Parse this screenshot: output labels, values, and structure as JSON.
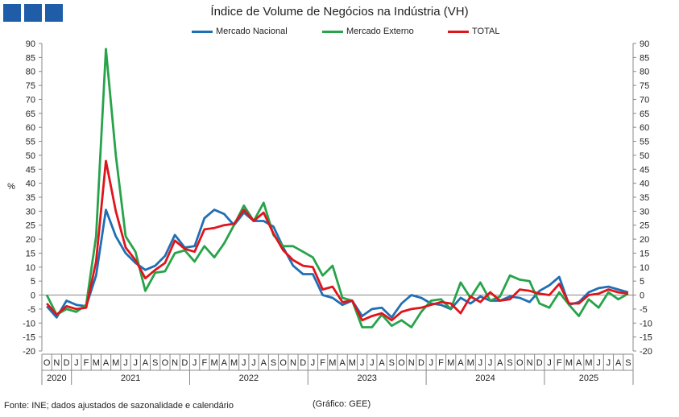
{
  "header": {
    "title": "Índice de Volume de Negócios na Indústria (VH)"
  },
  "footer": {
    "source": "Fonte: INE; dados ajustados de sazonalidade e calendário",
    "credit": "(Gráfico: GEE)"
  },
  "colors": {
    "logo": "#1f5da8",
    "axis": "#888888"
  },
  "chart_data": {
    "type": "line",
    "title": "Índice de Volume de Negócios na Indústria (VH)",
    "ylabel": "%",
    "ylim": [
      -20,
      90
    ],
    "ytick_step": 5,
    "grid": false,
    "legend_position": "top",
    "month_labels": [
      "O",
      "N",
      "D",
      "J",
      "F",
      "M",
      "A",
      "M",
      "J",
      "J",
      "A",
      "S",
      "O",
      "N",
      "D",
      "J",
      "F",
      "M",
      "A",
      "M",
      "J",
      "J",
      "A",
      "S",
      "O",
      "N",
      "D",
      "J",
      "F",
      "M",
      "A",
      "M",
      "J",
      "J",
      "A",
      "S",
      "O",
      "N",
      "D",
      "J",
      "F",
      "M",
      "A",
      "M",
      "J",
      "J",
      "A",
      "S",
      "O",
      "N",
      "D",
      "J",
      "F",
      "M",
      "A",
      "M",
      "J",
      "J",
      "A",
      "S"
    ],
    "years": [
      {
        "label": "2020",
        "count": 3
      },
      {
        "label": "2021",
        "count": 12
      },
      {
        "label": "2022",
        "count": 12
      },
      {
        "label": "2023",
        "count": 12
      },
      {
        "label": "2024",
        "count": 12
      },
      {
        "label": "2025",
        "count": 9
      }
    ],
    "series": [
      {
        "name": "Mercado Nacional",
        "color": "#1f6fb5",
        "values": [
          -4,
          -8,
          -2,
          -3.5,
          -4,
          7,
          30.5,
          21,
          15,
          11.5,
          9,
          10.5,
          14,
          21.5,
          17,
          17.5,
          27.5,
          30.5,
          29,
          25,
          29.5,
          26.5,
          26.5,
          24.5,
          17,
          10.5,
          7.5,
          7.5,
          0,
          -1,
          -3.5,
          -2,
          -7.5,
          -5,
          -4.5,
          -8,
          -3,
          0,
          -1,
          -3,
          -3.5,
          -5,
          -1,
          -3,
          -0.5,
          -2,
          -2,
          -0.5,
          -1,
          -2.5,
          1.5,
          3.5,
          6.5,
          -3.5,
          -2.5,
          1,
          2.5,
          3,
          2,
          1
        ]
      },
      {
        "name": "Mercado Externo",
        "color": "#27a34a",
        "values": [
          0,
          -7,
          -5,
          -6,
          -3.5,
          21,
          88,
          50,
          21,
          15.5,
          1.5,
          8,
          8.5,
          15,
          16,
          12,
          17.5,
          13.5,
          18.5,
          25,
          32,
          26.5,
          33,
          21.5,
          17.5,
          17.5,
          15.5,
          13.5,
          7,
          10.5,
          -1,
          -2,
          -11.5,
          -11.5,
          -7,
          -11,
          -9,
          -11.5,
          -6,
          -2,
          -1.5,
          -5,
          4.5,
          -1,
          4.5,
          -2,
          -0.5,
          7,
          5.5,
          5,
          -3,
          -4.5,
          1,
          -3.5,
          -7.5,
          -1.5,
          -4.5,
          1,
          -1.5,
          0.5
        ]
      },
      {
        "name": "TOTAL",
        "color": "#e0141b",
        "values": [
          -3,
          -7,
          -4,
          -5,
          -4.5,
          12,
          48,
          30,
          17,
          12.5,
          6,
          9,
          11.5,
          19.5,
          16.5,
          15.5,
          23.5,
          24,
          25,
          25.5,
          30.5,
          26.5,
          29.5,
          22,
          16,
          12.5,
          10.5,
          10,
          2,
          3,
          -2.5,
          -2,
          -9,
          -7.5,
          -6.5,
          -9,
          -6,
          -5,
          -4.5,
          -3.5,
          -2.5,
          -3,
          -6.5,
          -0.5,
          -2.5,
          1,
          -2,
          -1.5,
          2,
          1.5,
          0.5,
          0,
          4,
          -3,
          -3,
          0,
          0.5,
          2,
          1,
          0.5
        ]
      }
    ]
  }
}
